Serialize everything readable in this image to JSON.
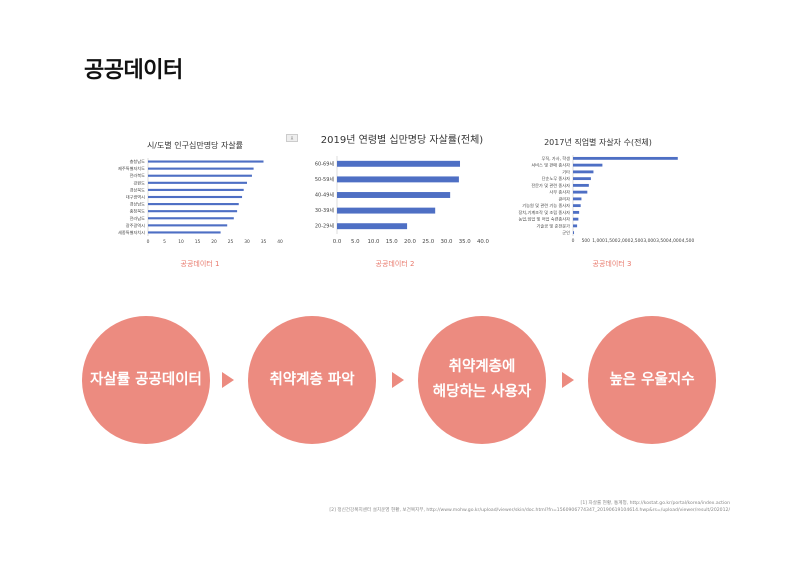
{
  "page": {
    "title": "공공데이터"
  },
  "captions": [
    "공공데이터 1",
    "공공데이터 2",
    "공공데이터 3"
  ],
  "badge": "표",
  "chart_data": [
    {
      "type": "bar",
      "orientation": "horizontal",
      "title": "시/도별 인구십만명당 자살률",
      "categories": [
        "충청남도",
        "제주특별자치도",
        "전라북도",
        "강원도",
        "경상북도",
        "대구광역시",
        "경상남도",
        "충청북도",
        "전라남도",
        "광주광역시",
        "세종특별자치시"
      ],
      "values": [
        35,
        32,
        31.5,
        30,
        29,
        28.5,
        27.5,
        27,
        26,
        24,
        22
      ],
      "xlim": [
        0,
        40
      ],
      "xticks": [
        0,
        5,
        10,
        15,
        20,
        25,
        30,
        35,
        40
      ],
      "color": "#4e6fc4"
    },
    {
      "type": "bar",
      "orientation": "horizontal",
      "title": "2019년 연령별 십만명당 자살률(전체)",
      "categories": [
        "60-69세",
        "50-59세",
        "40-49세",
        "30-39세",
        "20-29세"
      ],
      "values": [
        33.7,
        33.4,
        31.0,
        26.9,
        19.2
      ],
      "xlim": [
        0,
        40
      ],
      "xticks": [
        "0.0",
        "5.0",
        "10.0",
        "15.0",
        "20.0",
        "25.0",
        "30.0",
        "35.0",
        "40.0"
      ],
      "color": "#4e6fc4"
    },
    {
      "type": "bar",
      "orientation": "horizontal",
      "title": "2017년 직업별 자살자 수(전체)",
      "categories": [
        "무직, 가사, 학생",
        "서비스 및 판매 종사자",
        "기타",
        "단순노무 종사자",
        "전문가 및 관련 종사자",
        "사무 종사자",
        "관리자",
        "기능원 및 관련 기능 종사자",
        "장치,기계조작 및 조립 종사자",
        "농업,임업 및 어업 숙련종사자",
        "기술공 및 준전문가",
        "군인"
      ],
      "values": [
        4100,
        1150,
        800,
        700,
        620,
        560,
        330,
        300,
        240,
        210,
        160,
        40
      ],
      "xlim": [
        0,
        4500
      ],
      "xticks": [
        "0",
        "500",
        "1,000",
        "1,500",
        "2,000",
        "2,500",
        "3,000",
        "3,500",
        "4,000",
        "4,500"
      ],
      "color": "#4e6fc4"
    }
  ],
  "flow": {
    "steps": [
      {
        "lines": [
          "자살률 공공데이터"
        ]
      },
      {
        "lines": [
          "취약계층 파악"
        ]
      },
      {
        "lines": [
          "취약계층에",
          "해당하는 사용자"
        ]
      },
      {
        "lines": [
          "높은 우울지수"
        ]
      }
    ]
  },
  "refs": [
    "[1] 자살률 현황, 통계청, http://kostat.go.kr/portal/korea/index.action",
    "[2] 정신건강복지센터 설치운영 현황, 보건복지부, http://www.mohw.go.kr/upload/viewer/skin/doc.html?fn=1560906774347_20190619104614.hwp&rs=/upload/viewer/result/202012/"
  ],
  "colors": {
    "accent": "#ec8b80",
    "bar": "#4e6fc4",
    "caption": "#e8776a"
  }
}
